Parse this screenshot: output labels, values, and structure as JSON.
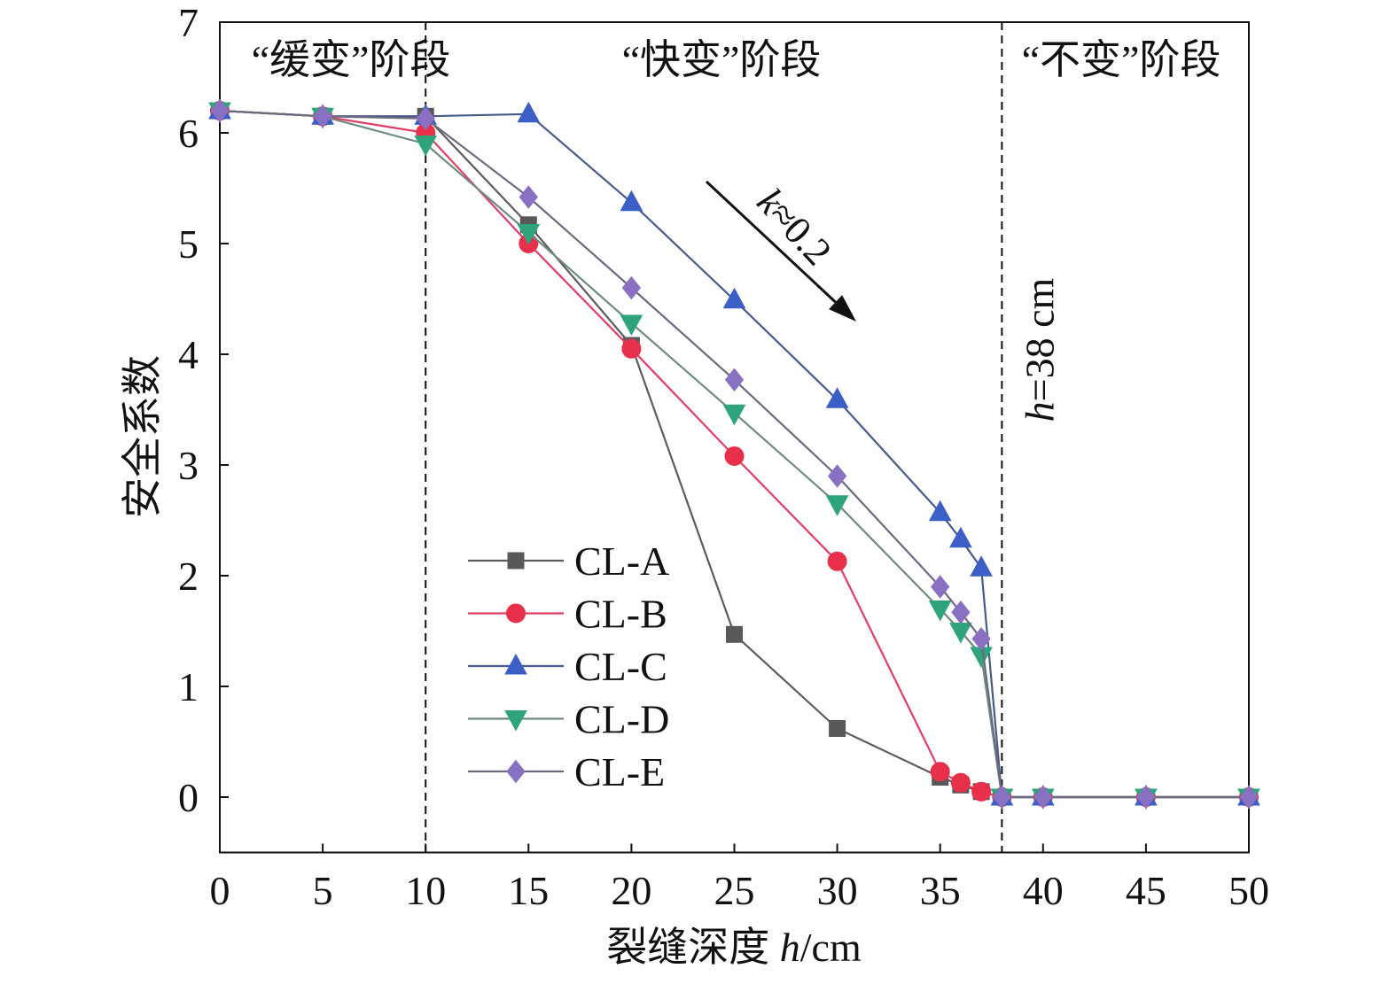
{
  "chart_data": {
    "type": "line",
    "xlabel": "裂缝深度 h/cm",
    "ylabel": "安全系数",
    "xlim": [
      0,
      50
    ],
    "ylim": [
      -0.5,
      7
    ],
    "xticks": [
      0,
      5,
      10,
      15,
      20,
      25,
      30,
      35,
      40,
      45,
      50
    ],
    "yticks": [
      0,
      1,
      2,
      3,
      4,
      5,
      6,
      7
    ],
    "grid": false,
    "legend_position": "center-left",
    "x": [
      0,
      5,
      10,
      15,
      20,
      25,
      30,
      35,
      36,
      37,
      38,
      40,
      45,
      50
    ],
    "series": [
      {
        "name": "CL-A",
        "marker": "square",
        "marker_color": "#595959",
        "line_color": "#5c5c5c",
        "values": [
          6.2,
          6.15,
          6.15,
          5.17,
          4.08,
          1.47,
          0.62,
          0.18,
          0.11,
          0.05,
          0,
          0,
          0,
          0
        ]
      },
      {
        "name": "CL-B",
        "marker": "circle",
        "marker_color": "#e8304a",
        "line_color": "#e23d66",
        "values": [
          6.2,
          6.15,
          6.0,
          5.0,
          4.05,
          3.08,
          2.13,
          0.23,
          0.13,
          0.05,
          0,
          0,
          0,
          0
        ]
      },
      {
        "name": "CL-C",
        "marker": "triangle-up",
        "marker_color": "#3b5fc6",
        "line_color": "#485a8c",
        "values": [
          6.2,
          6.15,
          6.15,
          6.17,
          5.37,
          4.49,
          3.59,
          2.57,
          2.33,
          2.07,
          0,
          0,
          0,
          0
        ]
      },
      {
        "name": "CL-D",
        "marker": "triangle-down",
        "marker_color": "#2ea37c",
        "line_color": "#6f8a82",
        "values": [
          6.2,
          6.15,
          5.9,
          5.1,
          4.28,
          3.47,
          2.65,
          1.7,
          1.5,
          1.28,
          0,
          0,
          0,
          0
        ]
      },
      {
        "name": "CL-E",
        "marker": "diamond",
        "marker_color": "#8a70c2",
        "line_color": "#6c6a7e",
        "values": [
          6.2,
          6.15,
          6.13,
          5.42,
          4.6,
          3.77,
          2.9,
          1.9,
          1.67,
          1.43,
          0,
          0,
          0,
          0
        ]
      }
    ],
    "reference_lines": [
      {
        "x": 10
      },
      {
        "x": 38,
        "label": "h=38 cm"
      }
    ],
    "phase_labels": [
      "“缓变”阶段",
      "“快变”阶段",
      "“不变”阶段"
    ],
    "slope_label": "k≈0.2"
  }
}
